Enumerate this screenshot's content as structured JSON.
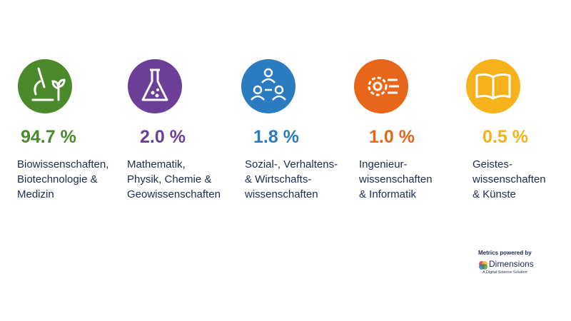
{
  "items": [
    {
      "percent": "94.7 %",
      "lines": [
        "Biowissenschaften,",
        "Biotechnologie &",
        "Medizin"
      ]
    },
    {
      "percent": "2.0 %",
      "lines": [
        "Mathematik,",
        "Physik, Chemie &",
        "Geowissenschaften"
      ]
    },
    {
      "percent": "1.8 %",
      "lines": [
        "Sozial-, Verhaltens-",
        "& Wirtschafts-",
        "wissenschaften"
      ]
    },
    {
      "percent": "1.0 %",
      "lines": [
        "Ingenieur-",
        "wissenschaften",
        "& Informatik"
      ]
    },
    {
      "percent": "0.5 %",
      "lines": [
        "Geistes-",
        "wissenschaften",
        "& Künste"
      ]
    }
  ],
  "footer": {
    "powered": "Metrics powered by",
    "brand": "Dimensions",
    "tagline": "A Digital Science Solution"
  }
}
